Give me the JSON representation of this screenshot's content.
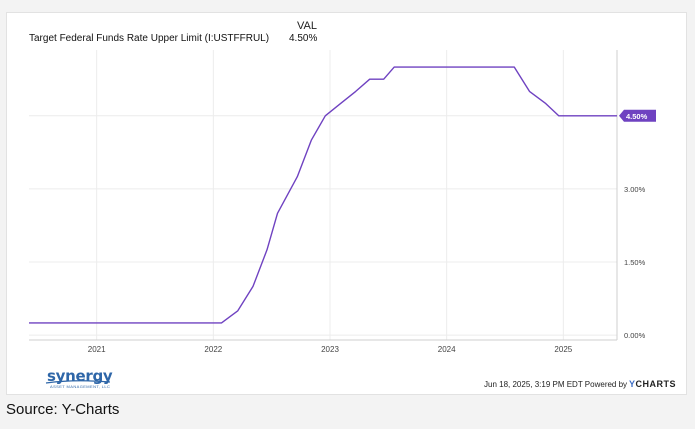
{
  "chart_data": {
    "type": "line",
    "legend": {
      "column_title": "VAL",
      "series_name": "Target Federal Funds Rate Upper Limit (I:USTFFRUL)",
      "series_value": "4.50%"
    },
    "series": [
      {
        "name": "Target Federal Funds Rate Upper Limit (I:USTFFRUL)",
        "color": "#6f42c1",
        "points": [
          [
            2020.42,
            0.25
          ],
          [
            2022.07,
            0.25
          ],
          [
            2022.21,
            0.5
          ],
          [
            2022.34,
            1.0
          ],
          [
            2022.46,
            1.75
          ],
          [
            2022.55,
            2.5
          ],
          [
            2022.72,
            3.25
          ],
          [
            2022.84,
            4.0
          ],
          [
            2022.96,
            4.5
          ],
          [
            2023.09,
            4.75
          ],
          [
            2023.22,
            5.0
          ],
          [
            2023.34,
            5.25
          ],
          [
            2023.46,
            5.25
          ],
          [
            2023.55,
            5.5
          ],
          [
            2024.58,
            5.5
          ],
          [
            2024.71,
            5.0
          ],
          [
            2024.85,
            4.75
          ],
          [
            2024.96,
            4.5
          ],
          [
            2025.46,
            4.5
          ]
        ]
      }
    ],
    "x_ticks": [
      "2021",
      "2022",
      "2023",
      "2024",
      "2025"
    ],
    "x_tick_values": [
      2021,
      2022,
      2023,
      2024,
      2025
    ],
    "y_ticks": [
      "0.00%",
      "1.50%",
      "3.00%",
      "4.50%"
    ],
    "y_tick_values": [
      0,
      1.5,
      3,
      4.5
    ],
    "xlim": [
      2020.42,
      2025.46
    ],
    "ylim": [
      -0.1,
      5.85
    ],
    "last_value_label": "4.50%",
    "grid": true
  },
  "footer": {
    "timestamp": "Jun 18, 2025, 3:19 PM EDT Powered by",
    "brand_y": "Y",
    "brand_rest": "CHARTS"
  },
  "logo": {
    "word": "synergy",
    "subtitle": "ASSET MANAGEMENT, LLC"
  },
  "source": "Source: Y-Charts"
}
